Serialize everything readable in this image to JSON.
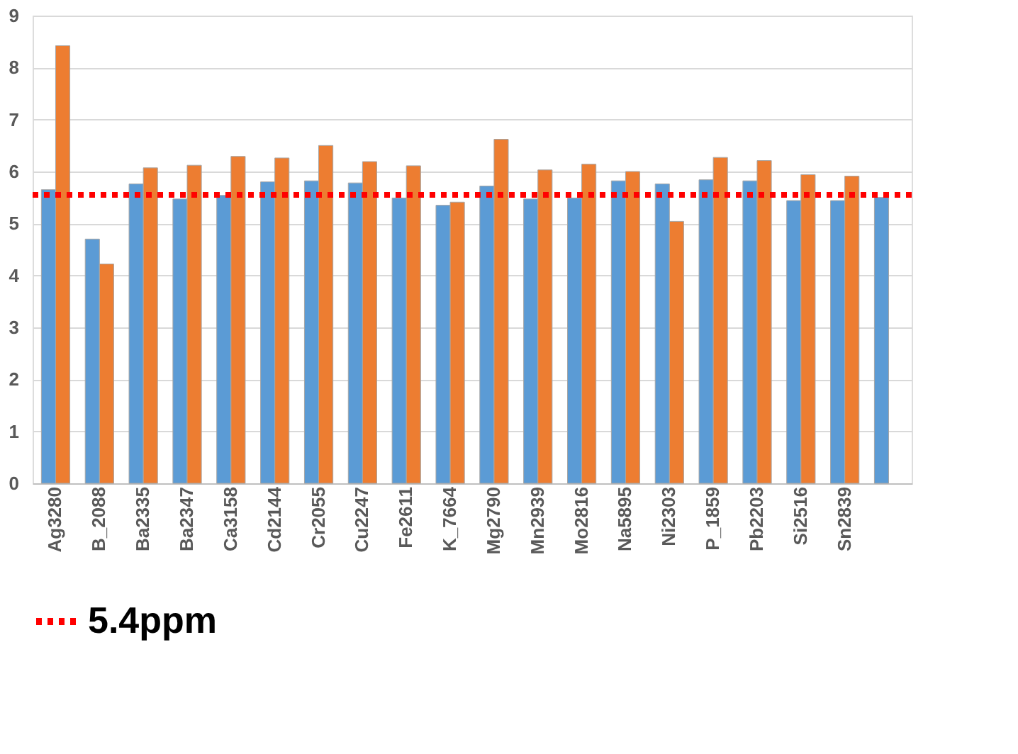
{
  "chart_data": {
    "type": "bar",
    "categories": [
      "Ag3280",
      "B_2088",
      "Ba2335",
      "Ba2347",
      "Ca3158",
      "Cd2144",
      "Cr2055",
      "Cu2247",
      "Fe2611",
      "K_7664",
      "Mg2790",
      "Mn2939",
      "Mo2816",
      "Na5895",
      "Ni2303",
      "P_1859",
      "Pb2203",
      "Si2516",
      "Sn2839",
      null
    ],
    "series": [
      {
        "color": "#5b9bd5",
        "values": [
          5.65,
          4.7,
          5.76,
          5.47,
          5.54,
          5.8,
          5.82,
          5.78,
          5.49,
          5.35,
          5.72,
          5.47,
          5.49,
          5.82,
          5.76,
          5.84,
          5.82,
          5.44,
          5.44,
          5.5
        ]
      },
      {
        "color": "#ed7d31",
        "values": [
          8.42,
          4.22,
          6.07,
          6.12,
          6.29,
          6.26,
          6.5,
          6.19,
          6.11,
          5.41,
          6.62,
          6.03,
          6.14,
          6.0,
          5.04,
          6.27,
          6.21,
          5.94,
          5.91,
          null
        ]
      }
    ],
    "ylim": [
      0,
      9
    ],
    "yticks": [
      0,
      1,
      2,
      3,
      4,
      5,
      6,
      7,
      8,
      9
    ],
    "grid": "y",
    "legend": "bottom",
    "ref_lines": [
      {
        "axis": "y",
        "value": 5.55,
        "label": "5.4ppm",
        "color": "#ff0000",
        "line_style": "dotted"
      }
    ]
  }
}
